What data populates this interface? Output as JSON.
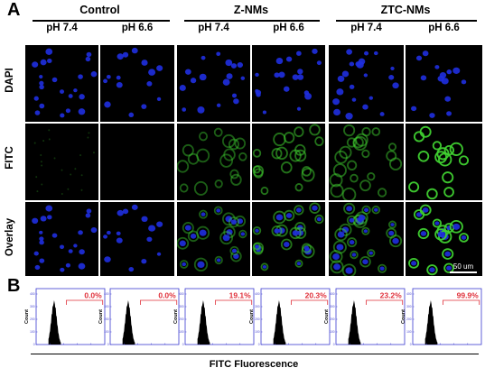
{
  "panel_a": {
    "letter": "A",
    "groups": [
      {
        "title": "Control",
        "columns": [
          "pH 7.4",
          "pH 6.6"
        ]
      },
      {
        "title": "Z-NMs",
        "columns": [
          "pH 7.4",
          "pH 6.6"
        ]
      },
      {
        "title": "ZTC-NMs",
        "columns": [
          "pH 7.4",
          "pH 6.6"
        ]
      }
    ],
    "rows": [
      "DAPI",
      "FITC",
      "Overlay"
    ],
    "fitc_intensity": [
      0.03,
      0.0,
      0.45,
      0.55,
      0.5,
      0.95
    ],
    "scale_bar": "50 um",
    "colors": {
      "dapi": "#1f2fe0",
      "fitc": "#3fd030",
      "background": "#000000"
    }
  },
  "panel_b": {
    "letter": "B",
    "percentages": [
      "0.0%",
      "0.0%",
      "19.1%",
      "20.3%",
      "23.2%",
      "99.9%"
    ],
    "gate_color": "#e0303a",
    "axis_color": "#3a3ad0",
    "y_ticks": [
      "0",
      "100",
      "200",
      "300",
      "400"
    ],
    "y_axis_label": "Count",
    "x_axis_label": "FITC Fluorescence"
  }
}
